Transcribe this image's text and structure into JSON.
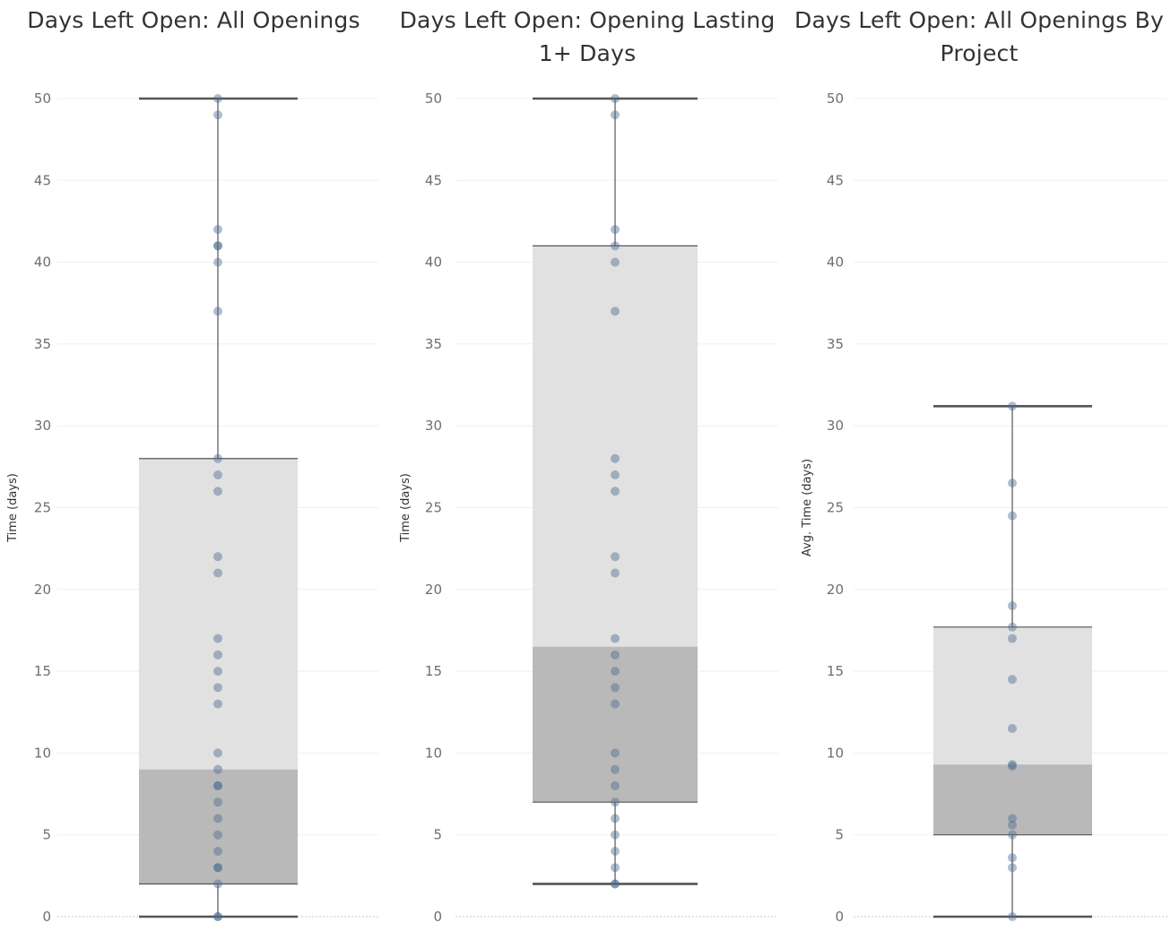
{
  "chart_data": [
    {
      "type": "box",
      "title": "Days Left Open: All Openings",
      "xlabel": "",
      "ylabel": "Time (days)",
      "ylim": [
        0,
        50
      ],
      "yticks": [
        0,
        5,
        10,
        15,
        20,
        25,
        30,
        35,
        40,
        45,
        50
      ],
      "grid": true,
      "box": {
        "whisker_low": 0,
        "q1": 2,
        "median": 9,
        "q3": 28,
        "whisker_high": 50
      },
      "points": [
        0,
        0,
        2,
        3,
        3,
        4,
        5,
        6,
        7,
        8,
        8,
        9,
        10,
        13,
        14,
        15,
        16,
        17,
        21,
        22,
        26,
        27,
        28,
        37,
        40,
        41,
        41,
        42,
        49,
        50
      ],
      "colors": {
        "point": "#4e6d93",
        "box_upper": "#e1e1e1",
        "box_lower": "#b9b9b9",
        "line": "#555555"
      }
    },
    {
      "type": "box",
      "title": "Days Left Open: Opening Lasting 1+ Days",
      "xlabel": "",
      "ylabel": "Time (days)",
      "ylim": [
        0,
        50
      ],
      "yticks": [
        0,
        5,
        10,
        15,
        20,
        25,
        30,
        35,
        40,
        45,
        50
      ],
      "grid": true,
      "box": {
        "whisker_low": 2,
        "q1": 7,
        "median": 16.5,
        "q3": 41,
        "whisker_high": 50
      },
      "points": [
        2,
        2,
        3,
        4,
        5,
        6,
        7,
        8,
        9,
        10,
        13,
        14,
        15,
        16,
        17,
        21,
        22,
        26,
        27,
        28,
        37,
        40,
        41,
        42,
        49,
        50
      ],
      "colors": {
        "point": "#4e6d93",
        "box_upper": "#e1e1e1",
        "box_lower": "#b9b9b9",
        "line": "#555555"
      }
    },
    {
      "type": "box",
      "title": "Days Left Open: All Openings By Project",
      "xlabel": "",
      "ylabel": "Avg. Time (days)",
      "ylim": [
        0,
        50
      ],
      "yticks": [
        0,
        5,
        10,
        15,
        20,
        25,
        30,
        35,
        40,
        45,
        50
      ],
      "grid": true,
      "box": {
        "whisker_low": 0,
        "q1": 5,
        "median": 9.3,
        "q3": 17.7,
        "whisker_high": 31.2
      },
      "points": [
        0,
        3,
        3.6,
        5,
        5.6,
        6,
        9.2,
        9.3,
        11.5,
        14.5,
        17,
        17.7,
        19,
        24.5,
        26.5,
        31.2
      ],
      "colors": {
        "point": "#4e6d93",
        "box_upper": "#e1e1e1",
        "box_lower": "#b9b9b9",
        "line": "#555555"
      }
    }
  ]
}
